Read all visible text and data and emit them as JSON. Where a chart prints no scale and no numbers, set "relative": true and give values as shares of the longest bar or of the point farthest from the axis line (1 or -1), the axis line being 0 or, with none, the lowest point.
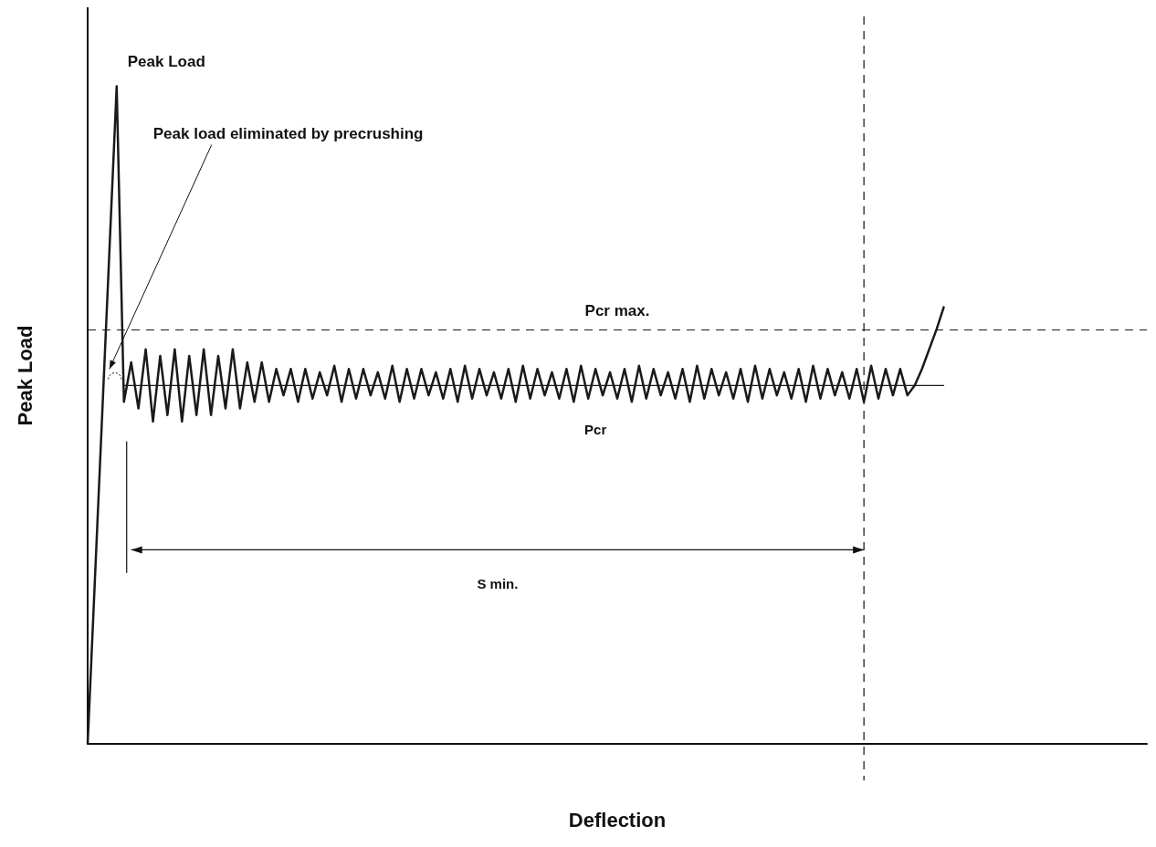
{
  "chart_data": {
    "type": "line",
    "relative": true,
    "xlabel": "Deflection",
    "ylabel": "Peak Load",
    "categories": [
      null,
      null,
      null,
      null,
      null,
      null,
      null,
      null,
      null,
      null,
      null,
      null,
      null,
      null,
      null,
      null,
      null,
      null,
      null,
      null,
      null,
      null,
      null,
      null,
      null,
      null,
      null,
      null,
      null,
      null,
      null,
      null,
      null,
      null,
      null,
      null,
      null,
      null,
      null,
      null,
      null,
      null,
      null,
      null,
      null,
      null,
      null,
      null,
      null,
      null,
      null,
      null,
      null,
      null,
      null,
      null,
      null,
      null,
      null,
      null,
      null,
      null,
      null,
      null,
      null,
      null,
      null,
      null,
      null,
      null,
      null,
      null,
      null,
      null,
      null,
      null,
      null,
      null,
      null,
      null,
      null,
      null,
      null,
      null,
      null,
      null,
      null,
      null,
      null,
      null,
      null,
      null,
      null,
      null,
      null,
      null,
      null,
      null,
      null,
      null,
      null,
      null,
      null,
      null,
      null,
      null,
      null,
      null,
      null,
      null,
      null,
      null,
      null,
      null,
      null,
      null,
      null,
      null,
      null,
      null,
      null,
      null,
      null,
      null,
      null,
      null,
      null,
      null,
      null,
      null,
      null,
      null,
      null,
      null,
      null,
      null,
      null,
      null,
      null,
      null,
      null,
      null,
      null,
      null,
      null,
      null,
      null
    ],
    "series": [
      {
        "color": "#1a1a1a",
        "values": [
          0,
          0.25,
          0.5,
          0.75,
          1,
          0.52,
          0.58,
          0.51,
          0.6,
          0.49,
          0.59,
          0.5,
          0.6,
          0.49,
          0.59,
          0.5,
          0.6,
          0.5,
          0.59,
          0.51,
          0.6,
          0.51,
          0.58,
          0.52,
          0.58,
          0.52,
          0.57,
          0.53,
          0.57,
          0.52,
          0.57,
          0.525,
          0.565,
          0.53,
          0.575,
          0.52,
          0.57,
          0.525,
          0.57,
          0.53,
          0.565,
          0.525,
          0.575,
          0.52,
          0.57,
          0.525,
          0.57,
          0.53,
          0.565,
          0.525,
          0.57,
          0.52,
          0.575,
          0.525,
          0.57,
          0.53,
          0.565,
          0.525,
          0.57,
          0.52,
          0.575,
          0.525,
          0.57,
          0.53,
          0.565,
          0.525,
          0.57,
          0.52,
          0.575,
          0.525,
          0.57,
          0.53,
          0.565,
          0.525,
          0.57,
          0.52,
          0.575,
          0.525,
          0.57,
          0.53,
          0.565,
          0.525,
          0.57,
          0.52,
          0.575,
          0.525,
          0.57,
          0.53,
          0.565,
          0.525,
          0.57,
          0.52,
          0.575,
          0.525,
          0.57,
          0.53,
          0.565,
          0.525,
          0.57,
          0.52,
          0.575,
          0.525,
          0.57,
          0.53,
          0.565,
          0.525,
          0.57,
          0.52,
          0.575,
          0.525,
          0.57,
          0.53,
          0.57,
          0.53,
          0.545,
          0.57,
          0.6,
          0.63,
          0.664,
          null,
          null,
          null,
          null,
          null,
          null,
          null,
          null,
          null,
          null,
          null,
          null,
          null,
          null,
          null,
          null,
          null,
          null,
          null,
          null,
          null,
          null,
          null,
          null,
          null,
          null,
          null,
          null
        ]
      },
      {
        "color": "#1a1a1a",
        "values": [
          null,
          null,
          null,
          null,
          null,
          0.545,
          0.545,
          0.545,
          0.545,
          0.545,
          0.545,
          0.545,
          0.545,
          0.545,
          0.545,
          0.545,
          0.545,
          0.545,
          0.545,
          0.545,
          0.545,
          0.545,
          0.545,
          0.545,
          0.545,
          0.545,
          0.545,
          0.545,
          0.545,
          0.545,
          0.545,
          0.545,
          0.545,
          0.545,
          0.545,
          0.545,
          0.545,
          0.545,
          0.545,
          0.545,
          0.545,
          0.545,
          0.545,
          0.545,
          0.545,
          0.545,
          0.545,
          0.545,
          0.545,
          0.545,
          0.545,
          0.545,
          0.545,
          0.545,
          0.545,
          0.545,
          0.545,
          0.545,
          0.545,
          0.545,
          0.545,
          0.545,
          0.545,
          0.545,
          0.545,
          0.545,
          0.545,
          0.545,
          0.545,
          0.545,
          0.545,
          0.545,
          0.545,
          0.545,
          0.545,
          0.545,
          0.545,
          0.545,
          0.545,
          0.545,
          0.545,
          0.545,
          0.545,
          0.545,
          0.545,
          0.545,
          0.545,
          0.545,
          0.545,
          0.545,
          0.545,
          0.545,
          0.545,
          0.545,
          0.545,
          0.545,
          0.545,
          0.545,
          0.545,
          0.545,
          0.545,
          0.545,
          0.545,
          0.545,
          0.545,
          0.545,
          0.545,
          0.545,
          0.545,
          0.545,
          0.545,
          0.545,
          0.545,
          0.545,
          0.545,
          0.545,
          0.545,
          0.545,
          0.545,
          null,
          null,
          null,
          null,
          null,
          null,
          null,
          null,
          null,
          null,
          null,
          null,
          null,
          null,
          null,
          null,
          null,
          null,
          null,
          null,
          null,
          null,
          null,
          null,
          null,
          null,
          null,
          null
        ]
      }
    ],
    "ref_lines": [
      {
        "axis": "y",
        "value": 0.627,
        "label": "Pcr max.",
        "line_style": "dashed",
        "color": "#1a1a1a"
      }
    ],
    "annotations": [
      "Peak Load",
      "Peak load eliminated by precrushing",
      "Pcr",
      "S min."
    ],
    "grid": false,
    "line_style": "solid"
  }
}
